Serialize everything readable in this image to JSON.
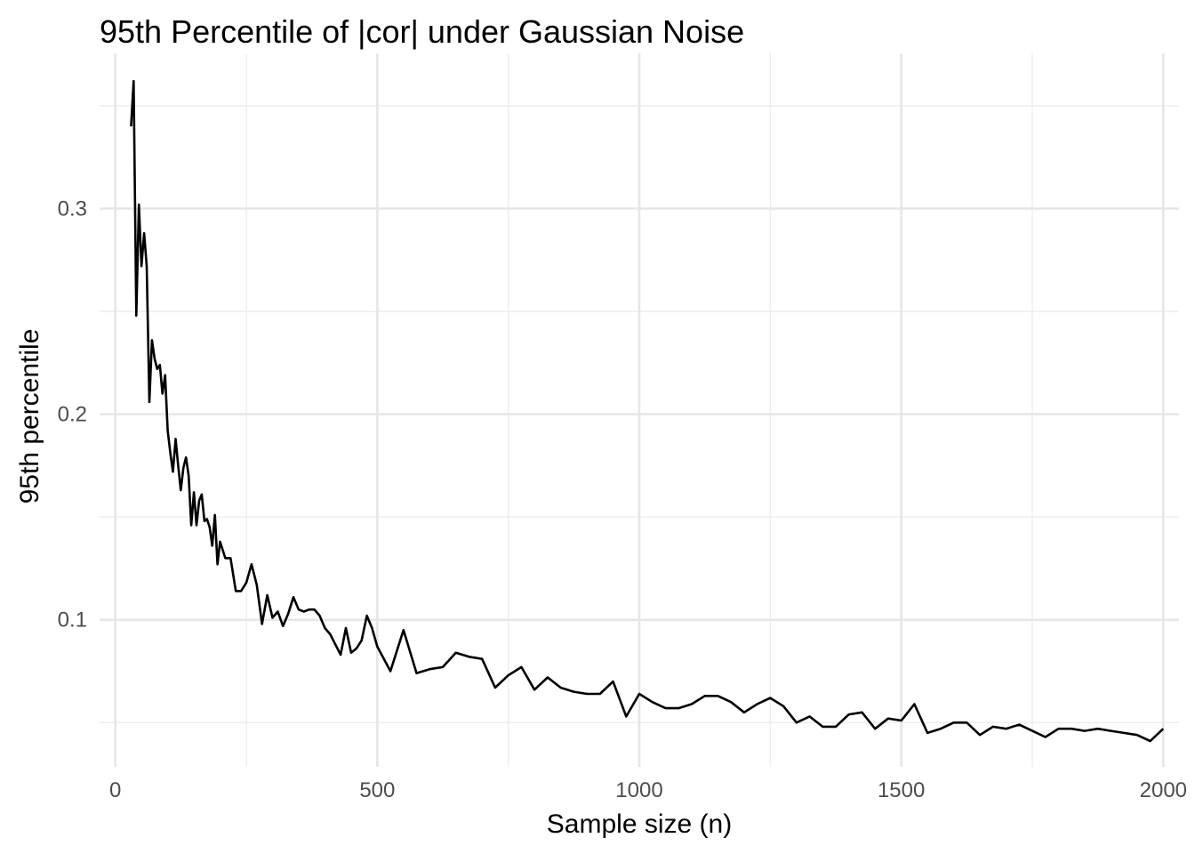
{
  "chart_data": {
    "type": "line",
    "title": "95th Percentile of |cor| under Gaussian Noise",
    "xlabel": "Sample size (n)",
    "ylabel": "95th percentile",
    "xlim": [
      -30,
      2030
    ],
    "ylim": [
      0.0285,
      0.3755
    ],
    "x_ticks": [
      0,
      500,
      1000,
      1500,
      2000
    ],
    "x_tick_labels": [
      "0",
      "500",
      "1000",
      "1500",
      "2000"
    ],
    "x_minor_ticks": [
      250,
      750,
      1250,
      1750
    ],
    "y_ticks": [
      0.1,
      0.2,
      0.3
    ],
    "y_tick_labels": [
      "0.1",
      "0.2",
      "0.3"
    ],
    "y_minor_ticks": [
      0.05,
      0.15,
      0.25,
      0.35
    ],
    "grid": true,
    "legend": "none",
    "line_color": "#000000",
    "series": [
      {
        "x": [
          30,
          35,
          40,
          45,
          50,
          55,
          60,
          65,
          70,
          75,
          80,
          85,
          90,
          95,
          100,
          105,
          110,
          115,
          120,
          125,
          130,
          135,
          140,
          145,
          150,
          155,
          160,
          165,
          170,
          175,
          180,
          185,
          190,
          195,
          200,
          210,
          220,
          230,
          240,
          250,
          260,
          270,
          280,
          290,
          300,
          310,
          320,
          330,
          340,
          350,
          360,
          370,
          380,
          390,
          400,
          410,
          420,
          430,
          440,
          450,
          460,
          470,
          480,
          490,
          500,
          525,
          550,
          575,
          600,
          625,
          650,
          675,
          700,
          725,
          750,
          775,
          800,
          825,
          850,
          875,
          900,
          925,
          950,
          975,
          1000,
          1025,
          1050,
          1075,
          1100,
          1125,
          1150,
          1175,
          1200,
          1225,
          1250,
          1275,
          1300,
          1325,
          1350,
          1375,
          1400,
          1425,
          1450,
          1475,
          1500,
          1525,
          1550,
          1575,
          1600,
          1625,
          1650,
          1675,
          1700,
          1725,
          1750,
          1775,
          1800,
          1825,
          1850,
          1875,
          1900,
          1925,
          1950,
          1975,
          2000
        ],
        "y": [
          0.34,
          0.362,
          0.248,
          0.302,
          0.272,
          0.288,
          0.272,
          0.206,
          0.236,
          0.227,
          0.222,
          0.224,
          0.21,
          0.219,
          0.192,
          0.181,
          0.172,
          0.188,
          0.175,
          0.163,
          0.174,
          0.179,
          0.17,
          0.146,
          0.162,
          0.146,
          0.158,
          0.161,
          0.148,
          0.149,
          0.145,
          0.136,
          0.151,
          0.127,
          0.138,
          0.13,
          0.13,
          0.114,
          0.114,
          0.118,
          0.127,
          0.117,
          0.098,
          0.112,
          0.101,
          0.104,
          0.097,
          0.103,
          0.111,
          0.105,
          0.104,
          0.105,
          0.105,
          0.102,
          0.096,
          0.093,
          0.088,
          0.083,
          0.096,
          0.084,
          0.086,
          0.09,
          0.102,
          0.096,
          0.087,
          0.075,
          0.095,
          0.074,
          0.076,
          0.077,
          0.084,
          0.082,
          0.081,
          0.067,
          0.073,
          0.077,
          0.066,
          0.072,
          0.067,
          0.065,
          0.064,
          0.064,
          0.07,
          0.053,
          0.064,
          0.06,
          0.057,
          0.057,
          0.059,
          0.063,
          0.063,
          0.06,
          0.055,
          0.059,
          0.062,
          0.058,
          0.05,
          0.053,
          0.048,
          0.048,
          0.054,
          0.055,
          0.047,
          0.052,
          0.051,
          0.059,
          0.045,
          0.047,
          0.05,
          0.05,
          0.044,
          0.048,
          0.047,
          0.049,
          0.046,
          0.043,
          0.047,
          0.047,
          0.046,
          0.047,
          0.046,
          0.045,
          0.044,
          0.041,
          0.047
        ]
      }
    ]
  }
}
